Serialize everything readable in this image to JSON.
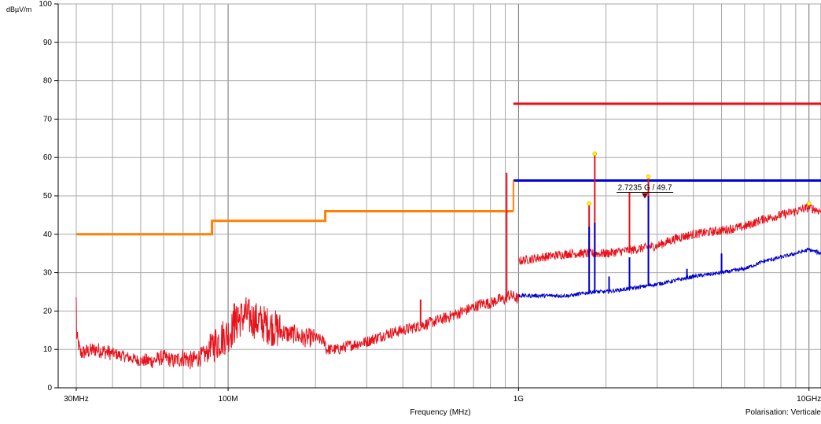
{
  "chart_data": {
    "type": "line",
    "ylabel": "dBµV/m",
    "xlabel": "Frequency (MHz)",
    "footer_note": "Polarisation: Verticale",
    "x_scale": "log",
    "x_unit": "MHz",
    "xlim": [
      26,
      11000
    ],
    "ylim": [
      0,
      100
    ],
    "grid": true,
    "y_ticks": [
      "0",
      "10",
      "20",
      "30",
      "40",
      "50",
      "60",
      "70",
      "80",
      "90",
      "100"
    ],
    "x_ticks": [
      {
        "value": 30,
        "label": "30MHz"
      },
      {
        "value": 100,
        "label": "100M"
      },
      {
        "value": 1000,
        "label": "1G"
      },
      {
        "value": 10000,
        "label": "10GHz"
      }
    ],
    "colors": {
      "limit_qp": "#ff8000",
      "limit_peak": "#e8111a",
      "limit_avg": "#0000dd",
      "peak_trace": "#e8111a",
      "avg_trace": "#0000cc",
      "marker": "#ffff00"
    },
    "limits": [
      {
        "key": "limit_qp",
        "steps": [
          [
            30,
            88,
            40
          ],
          [
            88,
            216,
            43.5
          ],
          [
            216,
            960,
            46
          ]
        ]
      },
      {
        "key": "limit_peak",
        "steps": [
          [
            960,
            11000,
            74
          ]
        ]
      },
      {
        "key": "limit_avg",
        "steps": [
          [
            960,
            11000,
            54
          ]
        ]
      }
    ],
    "series": [
      {
        "key": "peak_trace",
        "points": [
          [
            30,
            14
          ],
          [
            31,
            9
          ],
          [
            35,
            10
          ],
          [
            40,
            9
          ],
          [
            45,
            8
          ],
          [
            50,
            7
          ],
          [
            55,
            7
          ],
          [
            60,
            8
          ],
          [
            65,
            7
          ],
          [
            70,
            8
          ],
          [
            75,
            7
          ],
          [
            80,
            8
          ],
          [
            85,
            9
          ],
          [
            88,
            11
          ],
          [
            92,
            12
          ],
          [
            95,
            13
          ],
          [
            100,
            14
          ],
          [
            105,
            16
          ],
          [
            110,
            18
          ],
          [
            115,
            19
          ],
          [
            120,
            18
          ],
          [
            130,
            17
          ],
          [
            140,
            16
          ],
          [
            150,
            15
          ],
          [
            160,
            14
          ],
          [
            170,
            14
          ],
          [
            180,
            13
          ],
          [
            190,
            13
          ],
          [
            200,
            13
          ],
          [
            216,
            12
          ],
          [
            217,
            10
          ],
          [
            240,
            10
          ],
          [
            260,
            11
          ],
          [
            300,
            12
          ],
          [
            350,
            14
          ],
          [
            400,
            15
          ],
          [
            450,
            16
          ],
          [
            500,
            17
          ],
          [
            550,
            18
          ],
          [
            600,
            19
          ],
          [
            650,
            20
          ],
          [
            700,
            21
          ],
          [
            750,
            22
          ],
          [
            800,
            22
          ],
          [
            850,
            23
          ],
          [
            900,
            23
          ],
          [
            920,
            24
          ],
          [
            950,
            24
          ],
          [
            1000,
            23
          ]
        ],
        "noise": [
          2,
          1.5,
          2,
          2.5,
          5,
          5,
          2.5,
          1.5,
          1.5,
          1.5,
          1.5,
          1.5,
          1.5
        ],
        "spikes": [
          [
            87,
            14
          ],
          [
            105,
            22
          ],
          [
            108,
            21
          ],
          [
            460,
            23
          ],
          [
            910,
            56
          ]
        ]
      },
      {
        "key": "peak_trace",
        "points": [
          [
            1000,
            33
          ],
          [
            1200,
            34
          ],
          [
            1500,
            35
          ],
          [
            1800,
            35
          ],
          [
            2000,
            35
          ],
          [
            2500,
            36
          ],
          [
            3000,
            37
          ],
          [
            3500,
            39
          ],
          [
            4000,
            40
          ],
          [
            5000,
            41
          ],
          [
            6000,
            42
          ],
          [
            7000,
            44
          ],
          [
            8000,
            45
          ],
          [
            9000,
            46
          ],
          [
            10000,
            47
          ],
          [
            11000,
            46
          ]
        ],
        "noise": [
          1.2
        ],
        "spikes": [
          [
            1750,
            48
          ],
          [
            1830,
            61
          ],
          [
            2410,
            51
          ],
          [
            2800,
            55
          ],
          [
            10000,
            48
          ]
        ]
      },
      {
        "key": "avg_trace",
        "points": [
          [
            1000,
            24
          ],
          [
            1200,
            24
          ],
          [
            1500,
            24
          ],
          [
            1800,
            25
          ],
          [
            2000,
            25
          ],
          [
            2500,
            26
          ],
          [
            3000,
            27
          ],
          [
            3500,
            28
          ],
          [
            4000,
            29
          ],
          [
            5000,
            30
          ],
          [
            6000,
            31
          ],
          [
            7000,
            33
          ],
          [
            8000,
            34
          ],
          [
            9000,
            35
          ],
          [
            10000,
            36
          ],
          [
            11000,
            35
          ]
        ],
        "noise": [
          0.5
        ],
        "spikes": [
          [
            1750,
            42
          ],
          [
            1830,
            43
          ],
          [
            2050,
            29
          ],
          [
            2410,
            34
          ],
          [
            2800,
            50
          ],
          [
            3800,
            31
          ],
          [
            5000,
            35
          ]
        ]
      }
    ],
    "marker_points": [
      [
        1750,
        48
      ],
      [
        1830,
        61
      ],
      [
        2800,
        55
      ],
      [
        10000,
        48
      ]
    ],
    "annotation": {
      "label": "2.7235 G / 49.7",
      "x": 2723.5,
      "y": 49.7
    }
  }
}
